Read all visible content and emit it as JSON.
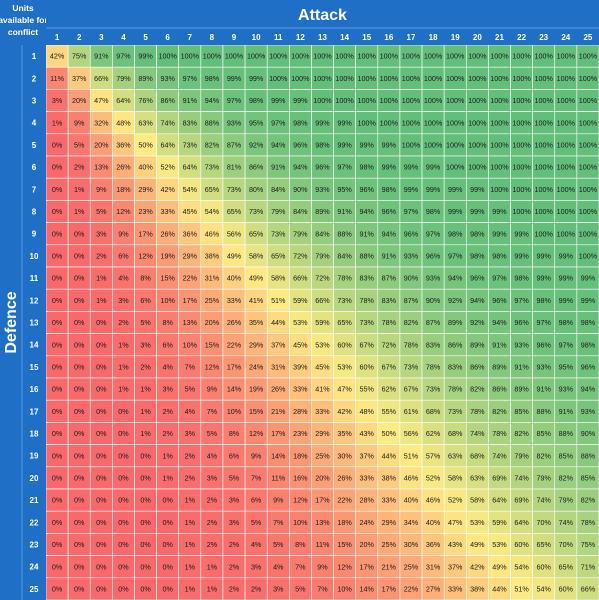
{
  "chart_data": {
    "type": "heatmap",
    "title": "",
    "corner_label": [
      "Units",
      "available for",
      "conflict"
    ],
    "xlabel": "Attack",
    "ylabel": "Defence",
    "x_categories": [
      "1",
      "2",
      "3",
      "4",
      "5",
      "6",
      "7",
      "8",
      "9",
      "10",
      "11",
      "12",
      "13",
      "14",
      "15",
      "16",
      "17",
      "18",
      "19",
      "20",
      "21",
      "22",
      "23",
      "24",
      "25"
    ],
    "y_categories": [
      "1",
      "2",
      "3",
      "4",
      "5",
      "6",
      "7",
      "8",
      "9",
      "10",
      "11",
      "12",
      "13",
      "14",
      "15",
      "16",
      "17",
      "18",
      "19",
      "20",
      "21",
      "22",
      "23",
      "24",
      "25"
    ],
    "value_format": "percent",
    "values": [
      [
        42,
        75,
        91,
        97,
        99,
        100,
        100,
        100,
        100,
        100,
        100,
        100,
        100,
        100,
        100,
        100,
        100,
        100,
        100,
        100,
        100,
        100,
        100,
        100,
        100
      ],
      [
        11,
        37,
        66,
        79,
        89,
        93,
        97,
        98,
        99,
        99,
        100,
        100,
        100,
        100,
        100,
        100,
        100,
        100,
        100,
        100,
        100,
        100,
        100,
        100,
        100
      ],
      [
        3,
        20,
        47,
        64,
        76,
        86,
        91,
        94,
        97,
        98,
        99,
        99,
        100,
        100,
        100,
        100,
        100,
        100,
        100,
        100,
        100,
        100,
        100,
        100,
        100
      ],
      [
        1,
        9,
        32,
        48,
        63,
        74,
        83,
        88,
        93,
        95,
        97,
        98,
        99,
        99,
        100,
        100,
        100,
        100,
        100,
        100,
        100,
        100,
        100,
        100,
        100
      ],
      [
        0,
        5,
        20,
        36,
        50,
        64,
        73,
        82,
        87,
        92,
        94,
        96,
        98,
        99,
        99,
        99,
        100,
        100,
        100,
        100,
        100,
        100,
        100,
        100,
        100
      ],
      [
        0,
        2,
        13,
        26,
        40,
        52,
        64,
        73,
        81,
        86,
        91,
        94,
        96,
        97,
        98,
        99,
        99,
        99,
        100,
        100,
        100,
        100,
        100,
        100,
        100
      ],
      [
        0,
        1,
        9,
        18,
        29,
        42,
        54,
        65,
        73,
        80,
        84,
        90,
        93,
        95,
        96,
        98,
        99,
        99,
        99,
        99,
        100,
        100,
        100,
        100,
        100
      ],
      [
        0,
        1,
        5,
        12,
        23,
        33,
        45,
        54,
        65,
        73,
        79,
        84,
        89,
        91,
        94,
        96,
        97,
        98,
        99,
        99,
        99,
        100,
        100,
        100,
        100
      ],
      [
        0,
        0,
        3,
        9,
        17,
        26,
        36,
        46,
        56,
        65,
        73,
        79,
        84,
        88,
        91,
        94,
        96,
        97,
        98,
        98,
        99,
        99,
        100,
        100,
        100
      ],
      [
        0,
        0,
        2,
        6,
        12,
        19,
        29,
        38,
        49,
        58,
        65,
        72,
        79,
        84,
        88,
        91,
        93,
        96,
        97,
        98,
        98,
        99,
        99,
        99,
        100
      ],
      [
        0,
        0,
        1,
        4,
        8,
        15,
        22,
        31,
        40,
        49,
        58,
        66,
        72,
        78,
        83,
        87,
        90,
        93,
        94,
        96,
        97,
        98,
        99,
        99,
        99
      ],
      [
        0,
        0,
        1,
        3,
        6,
        10,
        17,
        25,
        33,
        41,
        51,
        59,
        66,
        73,
        78,
        83,
        87,
        90,
        92,
        94,
        96,
        97,
        98,
        99,
        99
      ],
      [
        0,
        0,
        0,
        2,
        5,
        8,
        13,
        20,
        26,
        35,
        44,
        53,
        59,
        65,
        73,
        78,
        82,
        87,
        89,
        92,
        94,
        96,
        97,
        98,
        98
      ],
      [
        0,
        0,
        0,
        1,
        3,
        6,
        10,
        15,
        22,
        29,
        37,
        45,
        53,
        60,
        67,
        72,
        78,
        83,
        86,
        89,
        91,
        93,
        96,
        97,
        98
      ],
      [
        0,
        0,
        0,
        1,
        2,
        4,
        7,
        12,
        17,
        24,
        31,
        39,
        45,
        53,
        60,
        67,
        73,
        78,
        83,
        86,
        89,
        91,
        93,
        95,
        96
      ],
      [
        0,
        0,
        0,
        1,
        1,
        3,
        5,
        9,
        14,
        19,
        26,
        33,
        41,
        47,
        55,
        62,
        67,
        73,
        78,
        82,
        86,
        89,
        91,
        93,
        94
      ],
      [
        0,
        0,
        0,
        0,
        1,
        2,
        4,
        7,
        10,
        15,
        21,
        28,
        33,
        42,
        48,
        55,
        61,
        68,
        73,
        78,
        82,
        85,
        88,
        91,
        93
      ],
      [
        0,
        0,
        0,
        0,
        1,
        2,
        3,
        5,
        8,
        12,
        17,
        23,
        29,
        35,
        43,
        50,
        56,
        62,
        68,
        74,
        78,
        82,
        85,
        88,
        90
      ],
      [
        0,
        0,
        0,
        0,
        0,
        1,
        2,
        4,
        6,
        9,
        14,
        18,
        25,
        30,
        37,
        44,
        51,
        57,
        63,
        68,
        74,
        79,
        82,
        85,
        88
      ],
      [
        0,
        0,
        0,
        0,
        0,
        1,
        2,
        3,
        5,
        7,
        11,
        16,
        20,
        26,
        33,
        38,
        46,
        52,
        58,
        63,
        69,
        74,
        79,
        82,
        85
      ],
      [
        0,
        0,
        0,
        0,
        0,
        0,
        1,
        2,
        3,
        6,
        9,
        12,
        17,
        22,
        28,
        33,
        40,
        46,
        52,
        58,
        64,
        69,
        74,
        79,
        82
      ],
      [
        0,
        0,
        0,
        0,
        0,
        0,
        1,
        2,
        3,
        5,
        7,
        10,
        13,
        18,
        24,
        29,
        34,
        40,
        47,
        53,
        59,
        64,
        70,
        74,
        78
      ],
      [
        0,
        0,
        0,
        0,
        0,
        0,
        1,
        2,
        2,
        4,
        5,
        8,
        11,
        15,
        20,
        25,
        30,
        36,
        43,
        49,
        53,
        60,
        65,
        70,
        75
      ],
      [
        0,
        0,
        0,
        0,
        0,
        0,
        1,
        1,
        2,
        3,
        4,
        7,
        9,
        12,
        17,
        21,
        25,
        31,
        37,
        42,
        49,
        54,
        60,
        65,
        71
      ],
      [
        0,
        0,
        0,
        0,
        0,
        0,
        1,
        1,
        2,
        2,
        3,
        5,
        7,
        10,
        14,
        17,
        22,
        27,
        33,
        38,
        44,
        51,
        54,
        60,
        66
      ]
    ],
    "colors": {
      "header_bg": "#1f6fc6",
      "header_text": "#ffffff",
      "header_border": "#5a9be0",
      "grid_line": "#ffffff",
      "low": "#f8696b",
      "mid": "#ffeb84",
      "high": "#63be7b",
      "cell_text": "#1a1a1a"
    }
  }
}
